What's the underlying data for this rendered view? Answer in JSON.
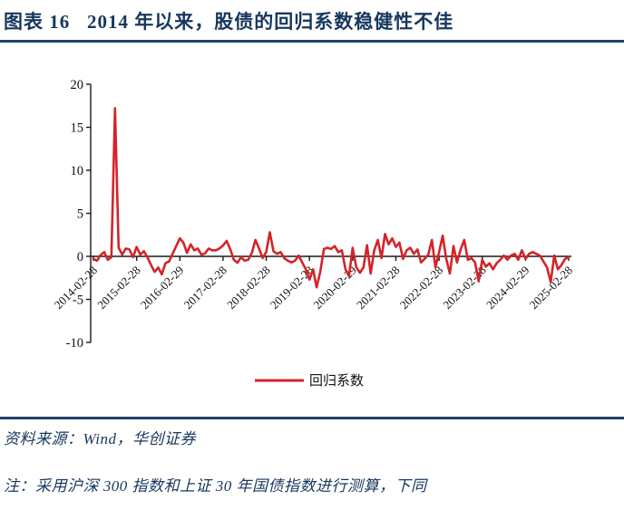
{
  "page": {
    "title": "图表 16   2014 年以来，股债的回归系数稳健性不佳",
    "source_label": "资料来源：Wind，华创证券",
    "note_label": "注：采用沪深 300 指数和上证 30 年国债指数进行测算，下同"
  },
  "colors": {
    "title_navy": "#17375E",
    "rule_navy": "#1F4268",
    "series_red": "#D42428",
    "axis_black": "#1A1A1A"
  },
  "chart_data": {
    "type": "line",
    "title": "",
    "xlabel": "",
    "ylabel": "",
    "x_start": "2014-02",
    "x_end": "2025-02",
    "frequency": "monthly",
    "ylim": [
      -10,
      20
    ],
    "y_ticks": [
      20,
      15,
      10,
      5,
      0,
      -5,
      -10
    ],
    "grid": false,
    "legend_position": "bottom",
    "x_tick_every": 12,
    "x_tick_labels": [
      "2014-02-28",
      "2015-02-28",
      "2016-02-29",
      "2017-02-28",
      "2018-02-28",
      "2019-02-28",
      "2020-02-29",
      "2021-02-28",
      "2022-02-28",
      "2023-02-28",
      "2024-02-29",
      "2025-02-28"
    ],
    "series": [
      {
        "name": "回归系数",
        "color": "#D42428",
        "values": [
          -0.3,
          -0.5,
          0.15,
          0.5,
          -0.4,
          -0.1,
          17.2,
          1.0,
          0.2,
          0.9,
          0.8,
          -0.1,
          1.1,
          0.2,
          0.6,
          -0.1,
          -1.0,
          -1.8,
          -1.3,
          -2.1,
          -0.8,
          -0.6,
          0.3,
          1.2,
          2.1,
          1.6,
          0.4,
          1.4,
          0.7,
          0.9,
          0.2,
          0.35,
          0.9,
          0.7,
          0.7,
          0.9,
          1.25,
          1.8,
          0.85,
          -0.4,
          -0.75,
          -0.1,
          -0.5,
          -0.4,
          0.4,
          1.9,
          0.9,
          -0.2,
          0.5,
          2.8,
          0.6,
          0.3,
          0.5,
          -0.2,
          -0.5,
          -0.7,
          -0.5,
          0.1,
          -0.7,
          -1.5,
          -2.7,
          -1.5,
          -3.6,
          -1.8,
          0.85,
          1.0,
          0.85,
          1.2,
          0.5,
          0.7,
          -1.5,
          -2.3,
          1.0,
          -1.25,
          -1.9,
          -1.3,
          1.3,
          -2.0,
          0.7,
          1.9,
          -0.2,
          2.6,
          1.4,
          2.1,
          1.1,
          1.6,
          -0.3,
          0.7,
          1.0,
          0.3,
          0.8,
          -0.7,
          -0.3,
          0.2,
          1.9,
          -1.3,
          0.5,
          2.4,
          -0.3,
          -2.0,
          1.2,
          -0.7,
          0.8,
          1.9,
          -0.4,
          -0.2,
          -0.7,
          -2.9,
          -0.4,
          -1.2,
          -0.8,
          -1.5,
          -0.8,
          -0.4,
          0.1,
          -0.4,
          0.1,
          0.3,
          -0.4,
          0.7,
          -0.3,
          0.3,
          0.5,
          0.3,
          0.1,
          -0.6,
          -1.3,
          -3.0,
          0.1,
          -1.5,
          -1.0,
          -0.3,
          -0.1
        ]
      }
    ]
  }
}
